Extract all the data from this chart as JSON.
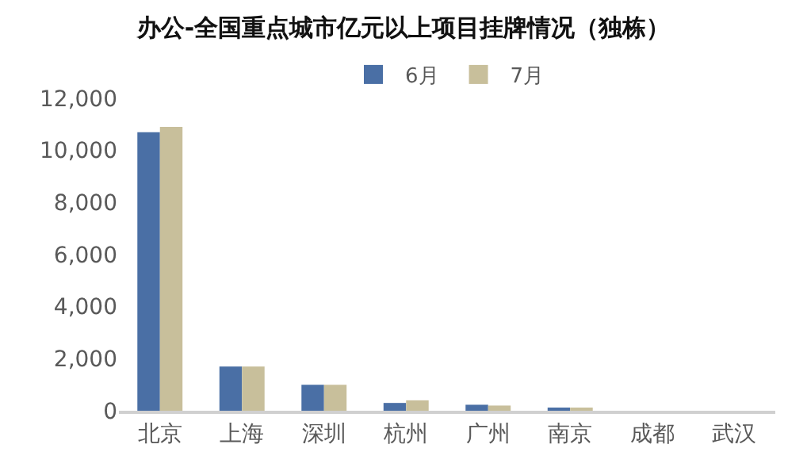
{
  "chart_data": {
    "type": "bar",
    "title": "办公-全国重点城市亿元以上项目挂牌情况（独栋）",
    "categories": [
      "北京",
      "上海",
      "深圳",
      "杭州",
      "广州",
      "南京",
      "成都",
      "武汉"
    ],
    "series": [
      {
        "name": "6月",
        "color": "#4a6fa5",
        "values": [
          10700,
          1700,
          1000,
          300,
          230,
          80,
          0,
          0
        ]
      },
      {
        "name": "7月",
        "color": "#c8bf9b",
        "values": [
          10900,
          1700,
          1000,
          400,
          200,
          80,
          0,
          0
        ]
      }
    ],
    "ylim": [
      0,
      12000
    ],
    "yticks": [
      {
        "value": 0,
        "label": "0"
      },
      {
        "value": 2000,
        "label": "2,000"
      },
      {
        "value": 4000,
        "label": "4,000"
      },
      {
        "value": 6000,
        "label": "6,000"
      },
      {
        "value": 8000,
        "label": "8,000"
      },
      {
        "value": 10000,
        "label": "10,000"
      },
      {
        "value": 12000,
        "label": "12,000"
      }
    ],
    "grid": false,
    "legend": "top"
  }
}
